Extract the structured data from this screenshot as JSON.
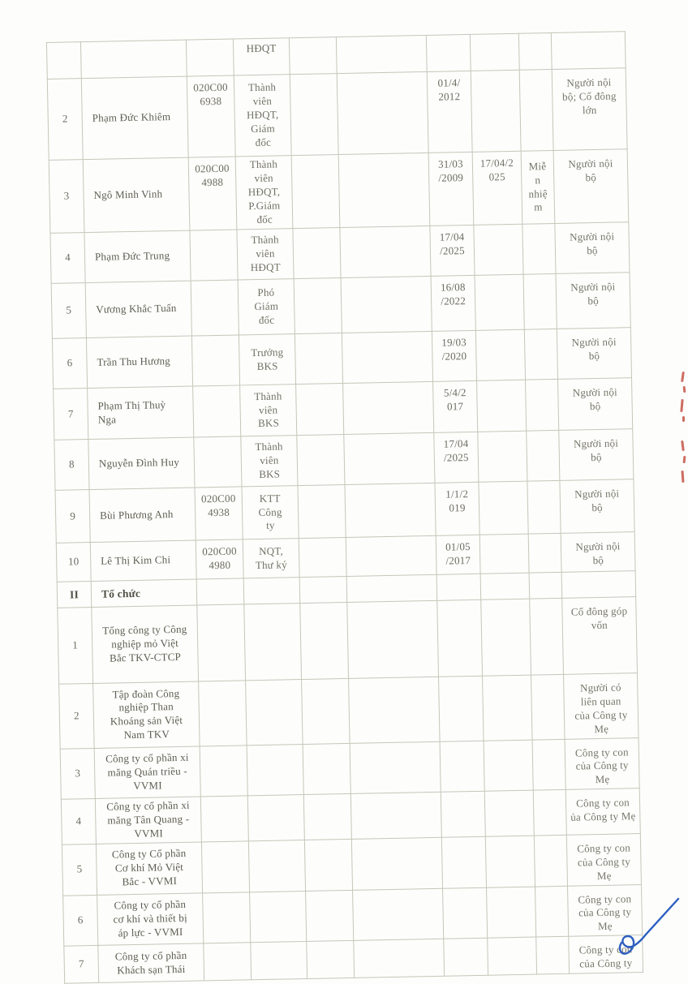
{
  "page": {
    "background": "#fdfdfb",
    "text_color": "#6b6a5f",
    "border_color": "#c6c6bb"
  },
  "table": {
    "rows": [
      {
        "type": "partial",
        "position": "HĐQT"
      },
      {
        "type": "person",
        "no": "2",
        "name": "Phạm Đức Khiêm",
        "code": "020C00\n6938",
        "position": "Thành\nviên\nHĐQT,\nGiám\nđốc",
        "date1": "01/4/\n2012",
        "relation": "Người nội\nbộ; Cổ đông\nlớn"
      },
      {
        "type": "person",
        "no": "3",
        "name": "Ngô Minh Vinh",
        "code": "020C00\n4988",
        "position": "Thành\nviên\nHĐQT,\nP.Giám\nđốc",
        "date1": "31/03\n/2009",
        "date2": "17/04/2\n025",
        "note": "Miễ\nn\nnhiệ\nm",
        "relation": "Người nội\nbộ"
      },
      {
        "type": "person",
        "no": "4",
        "name": "Phạm Đức Trung",
        "position": "Thành\nviên\nHĐQT",
        "date1": "17/04\n/2025",
        "relation": "Người nội\nbộ"
      },
      {
        "type": "person",
        "no": "5",
        "name": "Vương Khắc Tuấn",
        "position": "Phó\nGiám\nđốc",
        "date1": "16/08\n/2022",
        "relation": "Người nội\nbộ"
      },
      {
        "type": "person",
        "no": "6",
        "name": "Trần Thu Hương",
        "position": "Trưởng\nBKS",
        "date1": "19/03\n/2020",
        "relation": "Người nội\nbộ"
      },
      {
        "type": "person",
        "no": "7",
        "name": "Phạm Thị Thuỳ\nNga",
        "position": "Thành\nviên\nBKS",
        "date1": "5/4/2\n017",
        "relation": "Người nội\nbộ"
      },
      {
        "type": "person",
        "no": "8",
        "name": "Nguyễn Đình Huy",
        "position": "Thành\nviên\nBKS",
        "date1": "17/04\n/2025",
        "relation": "Người nội\nbộ"
      },
      {
        "type": "person",
        "no": "9",
        "name": "Bùi Phương Anh",
        "code": "020C00\n4938",
        "position": "KTT\nCông\nty",
        "date1": "1/1/2\n019",
        "relation": "Người nội\nbộ"
      },
      {
        "type": "person",
        "no": "10",
        "name": "Lê Thị Kim Chi",
        "code": "020C00\n4980",
        "position": "NQT,\nThư ký",
        "date1": "01/05\n/2017",
        "relation": "Người nội\nbộ"
      },
      {
        "type": "section",
        "no": "II",
        "name": "Tổ chức"
      },
      {
        "type": "org",
        "no": "1",
        "name": "Tổng công ty Công\nnghiệp mỏ Việt\nBắc TKV-CTCP",
        "relation": "Cổ đông góp\nvốn"
      },
      {
        "type": "org",
        "no": "2",
        "name": "Tập đoàn Công\nnghiệp Than\nKhoáng sản Việt\nNam  TKV",
        "relation": "Người có\nliên quan\ncủa Công ty\nMẹ"
      },
      {
        "type": "org",
        "no": "3",
        "name": "Công ty cổ phần xi\nmăng Quán triều -\nVVMI",
        "relation": "Công ty con\ncủa Công ty\nMẹ"
      },
      {
        "type": "org",
        "no": "4",
        "name": "Công ty cổ phần xi\nmăng Tân Quang -\nVVMI",
        "relation": "Công ty con\nủa Công ty Mẹ"
      },
      {
        "type": "org",
        "no": "5",
        "name": "Công ty Cổ phần\nCơ khí Mỏ Việt\nBắc - VVMI",
        "relation": "Công ty con\ncủa Công ty\nMẹ"
      },
      {
        "type": "org",
        "no": "6",
        "name": "Công ty cổ phần\ncơ khí và thiết bị\náp lực  - VVMI",
        "relation": "Công ty con\ncủa Công ty\nMẹ"
      },
      {
        "type": "org",
        "no": "7",
        "name": "Công ty cổ phần\nKhách sạn Thái",
        "relation": "Công ty con\ncủa Công ty"
      }
    ]
  },
  "artifacts": {
    "signature_color": "#2e5fc0",
    "edge_marks_color": "#c0483c"
  }
}
